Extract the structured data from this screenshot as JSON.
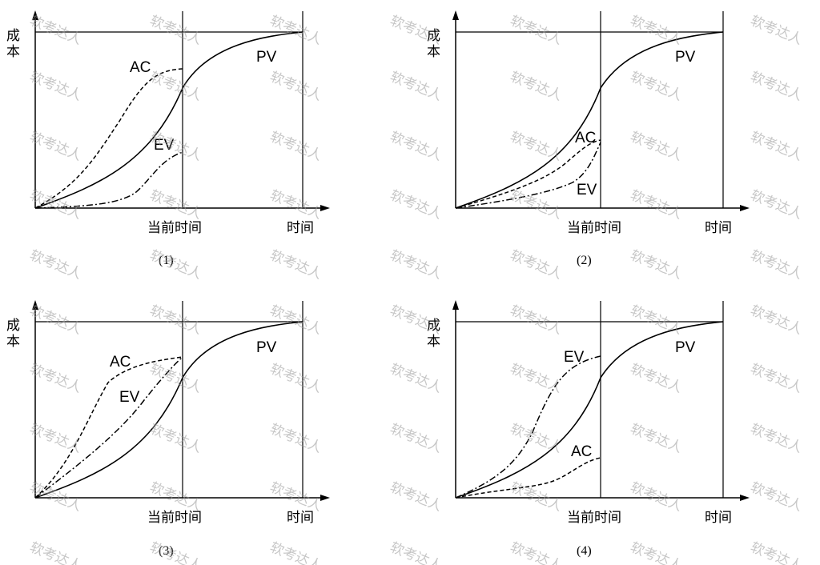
{
  "panels": [
    {
      "caption": "(1)",
      "y_axis_label": [
        "成",
        "本"
      ],
      "current_time_label": "当前时间",
      "time_label": "时间",
      "series": [
        {
          "name": "PV",
          "style": "solid"
        },
        {
          "name": "AC",
          "style": "dashed"
        },
        {
          "name": "EV",
          "style": "dashdot"
        }
      ]
    },
    {
      "caption": "(2)",
      "y_axis_label": [
        "成",
        "本"
      ],
      "current_time_label": "当前时间",
      "time_label": "时间",
      "series": [
        {
          "name": "PV",
          "style": "solid"
        },
        {
          "name": "AC",
          "style": "dashed"
        },
        {
          "name": "EV",
          "style": "dashdot"
        }
      ]
    },
    {
      "caption": "(3)",
      "y_axis_label": [
        "成",
        "本"
      ],
      "current_time_label": "当前时间",
      "time_label": "时间",
      "series": [
        {
          "name": "PV",
          "style": "solid"
        },
        {
          "name": "AC",
          "style": "dashed"
        },
        {
          "name": "EV",
          "style": "dashdot"
        }
      ]
    },
    {
      "caption": "(4)",
      "y_axis_label": [
        "成",
        "本"
      ],
      "current_time_label": "当前时间",
      "time_label": "时间",
      "series": [
        {
          "name": "PV",
          "style": "solid"
        },
        {
          "name": "AC",
          "style": "dashed"
        },
        {
          "name": "EV",
          "style": "dashdot"
        }
      ]
    }
  ],
  "watermark": "软考达人"
}
